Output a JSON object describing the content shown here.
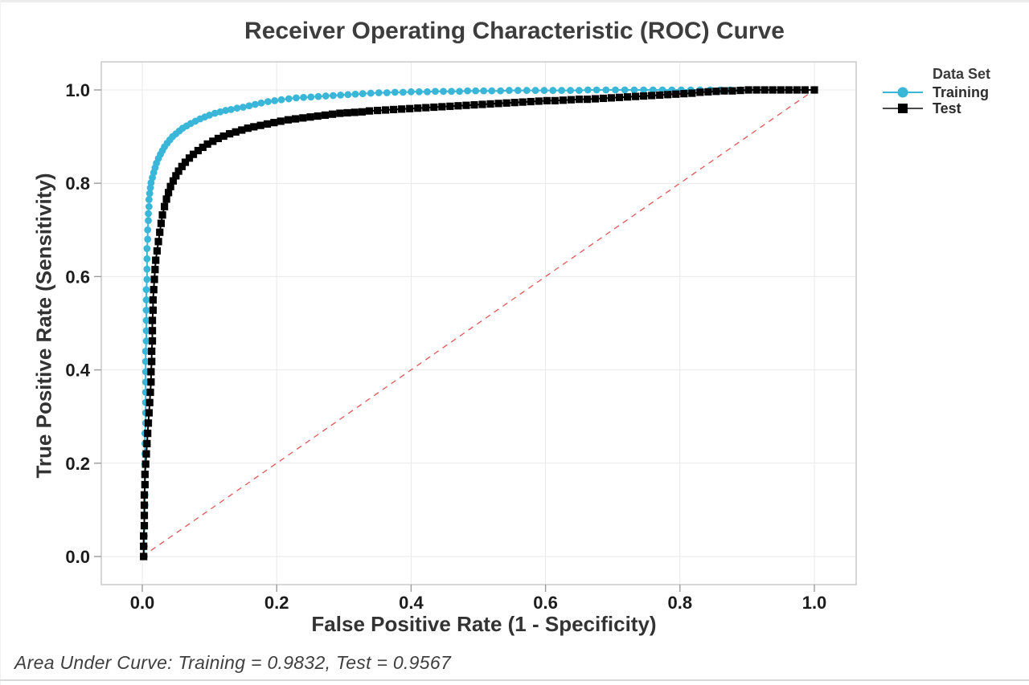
{
  "chart_data": {
    "type": "line",
    "title": "Receiver Operating Characteristic (ROC) Curve",
    "xlabel": "False Positive Rate (1 - Specificity)",
    "ylabel": "True Positive Rate (Sensitivity)",
    "xlim": [
      0.0,
      1.0
    ],
    "ylim": [
      0.0,
      1.0
    ],
    "x_ticks": [
      0.0,
      0.2,
      0.4,
      0.6,
      0.8,
      1.0
    ],
    "y_ticks": [
      0.0,
      0.2,
      0.4,
      0.6,
      0.8,
      1.0
    ],
    "grid": true,
    "legend": {
      "title": "Data Set",
      "position": "right",
      "entries": [
        "Training",
        "Test"
      ]
    },
    "annotation": "Area Under Curve: Training = 0.9832, Test = 0.9567",
    "auc": {
      "Training": 0.9832,
      "Test": 0.9567
    },
    "reference_line": {
      "from": [
        0,
        0
      ],
      "to": [
        1,
        1
      ],
      "style": "dashed",
      "color": "#e25757"
    },
    "series": [
      {
        "name": "Training",
        "marker": "circle",
        "color": "#3ab7d8",
        "points": [
          [
            0.003,
            0
          ],
          [
            0.003,
            0.022
          ],
          [
            0.003,
            0.044
          ],
          [
            0.003,
            0.066
          ],
          [
            0.003,
            0.088
          ],
          [
            0.004,
            0.11
          ],
          [
            0.004,
            0.132
          ],
          [
            0.004,
            0.154
          ],
          [
            0.004,
            0.176
          ],
          [
            0.004,
            0.198
          ],
          [
            0.004,
            0.22
          ],
          [
            0.004,
            0.242
          ],
          [
            0.004,
            0.264
          ],
          [
            0.005,
            0.286
          ],
          [
            0.005,
            0.308
          ],
          [
            0.005,
            0.33
          ],
          [
            0.005,
            0.352
          ],
          [
            0.005,
            0.374
          ],
          [
            0.005,
            0.396
          ],
          [
            0.005,
            0.418
          ],
          [
            0.005,
            0.44
          ],
          [
            0.006,
            0.462
          ],
          [
            0.006,
            0.484
          ],
          [
            0.006,
            0.506
          ],
          [
            0.006,
            0.528
          ],
          [
            0.006,
            0.55
          ],
          [
            0.006,
            0.572
          ],
          [
            0.007,
            0.594
          ],
          [
            0.007,
            0.616
          ],
          [
            0.007,
            0.638
          ],
          [
            0.007,
            0.66
          ],
          [
            0.008,
            0.68
          ],
          [
            0.008,
            0.7
          ],
          [
            0.009,
            0.72
          ],
          [
            0.009,
            0.735
          ],
          [
            0.01,
            0.75
          ],
          [
            0.01,
            0.765
          ],
          [
            0.011,
            0.778
          ],
          [
            0.012,
            0.79
          ],
          [
            0.013,
            0.801
          ],
          [
            0.015,
            0.812
          ],
          [
            0.017,
            0.823
          ],
          [
            0.019,
            0.833
          ],
          [
            0.021,
            0.843
          ],
          [
            0.024,
            0.853
          ],
          [
            0.027,
            0.862
          ],
          [
            0.03,
            0.87
          ],
          [
            0.033,
            0.878
          ],
          [
            0.037,
            0.886
          ],
          [
            0.041,
            0.893
          ],
          [
            0.045,
            0.9
          ],
          [
            0.05,
            0.906
          ],
          [
            0.055,
            0.912
          ],
          [
            0.06,
            0.918
          ],
          [
            0.066,
            0.923
          ],
          [
            0.072,
            0.928
          ],
          [
            0.079,
            0.933
          ],
          [
            0.086,
            0.938
          ],
          [
            0.093,
            0.942
          ],
          [
            0.1,
            0.946
          ],
          [
            0.108,
            0.95
          ],
          [
            0.116,
            0.953
          ],
          [
            0.124,
            0.956
          ],
          [
            0.132,
            0.958
          ],
          [
            0.141,
            0.961
          ],
          [
            0.15,
            0.963
          ],
          [
            0.159,
            0.966
          ],
          [
            0.168,
            0.969
          ],
          [
            0.177,
            0.972
          ],
          [
            0.187,
            0.975
          ],
          [
            0.197,
            0.977
          ],
          [
            0.207,
            0.979
          ],
          [
            0.218,
            0.981
          ],
          [
            0.229,
            0.983
          ],
          [
            0.24,
            0.984
          ],
          [
            0.251,
            0.985
          ],
          [
            0.262,
            0.986
          ],
          [
            0.273,
            0.987
          ],
          [
            0.284,
            0.988
          ],
          [
            0.295,
            0.989
          ],
          [
            0.306,
            0.99
          ],
          [
            0.317,
            0.991
          ],
          [
            0.328,
            0.992
          ],
          [
            0.34,
            0.993
          ],
          [
            0.352,
            0.994
          ],
          [
            0.364,
            0.994
          ],
          [
            0.376,
            0.995
          ],
          [
            0.388,
            0.995
          ],
          [
            0.4,
            0.996
          ],
          [
            0.412,
            0.996
          ],
          [
            0.424,
            0.996
          ],
          [
            0.436,
            0.997
          ],
          [
            0.448,
            0.997
          ],
          [
            0.46,
            0.997
          ],
          [
            0.472,
            0.997
          ],
          [
            0.484,
            0.998
          ],
          [
            0.496,
            0.998
          ],
          [
            0.508,
            0.998
          ],
          [
            0.52,
            0.998
          ],
          [
            0.533,
            0.998
          ],
          [
            0.546,
            0.999
          ],
          [
            0.559,
            0.999
          ],
          [
            0.572,
            0.999
          ],
          [
            0.585,
            0.999
          ],
          [
            0.598,
            0.999
          ],
          [
            0.611,
            0.999
          ],
          [
            0.624,
            0.999
          ],
          [
            0.637,
            0.999
          ],
          [
            0.65,
            0.999
          ],
          [
            0.663,
            1
          ],
          [
            0.676,
            1
          ],
          [
            0.69,
            1
          ],
          [
            0.704,
            1
          ],
          [
            0.718,
            1
          ],
          [
            0.732,
            1
          ],
          [
            0.746,
            1
          ],
          [
            0.76,
            1
          ],
          [
            0.774,
            1
          ],
          [
            0.788,
            1
          ],
          [
            0.802,
            1
          ],
          [
            0.816,
            1
          ],
          [
            0.83,
            1
          ],
          [
            0.845,
            1
          ],
          [
            0.86,
            1
          ],
          [
            0.875,
            1
          ],
          [
            0.89,
            1
          ],
          [
            1,
            1
          ]
        ]
      },
      {
        "name": "Test",
        "marker": "square",
        "color": "#000000",
        "points": [
          [
            0.002,
            0
          ],
          [
            0.002,
            0.022
          ],
          [
            0.002,
            0.044
          ],
          [
            0.003,
            0.066
          ],
          [
            0.003,
            0.088
          ],
          [
            0.003,
            0.11
          ],
          [
            0.003,
            0.132
          ],
          [
            0.004,
            0.154
          ],
          [
            0.004,
            0.176
          ],
          [
            0.005,
            0.198
          ],
          [
            0.006,
            0.22
          ],
          [
            0.007,
            0.242
          ],
          [
            0.008,
            0.264
          ],
          [
            0.009,
            0.286
          ],
          [
            0.01,
            0.308
          ],
          [
            0.011,
            0.33
          ],
          [
            0.012,
            0.352
          ],
          [
            0.013,
            0.374
          ],
          [
            0.013,
            0.396
          ],
          [
            0.014,
            0.418
          ],
          [
            0.014,
            0.44
          ],
          [
            0.015,
            0.462
          ],
          [
            0.015,
            0.484
          ],
          [
            0.015,
            0.506
          ],
          [
            0.016,
            0.528
          ],
          [
            0.016,
            0.55
          ],
          [
            0.017,
            0.572
          ],
          [
            0.018,
            0.594
          ],
          [
            0.019,
            0.615
          ],
          [
            0.02,
            0.635
          ],
          [
            0.022,
            0.655
          ],
          [
            0.024,
            0.675
          ],
          [
            0.026,
            0.695
          ],
          [
            0.028,
            0.714
          ],
          [
            0.03,
            0.732
          ],
          [
            0.033,
            0.75
          ],
          [
            0.036,
            0.766
          ],
          [
            0.039,
            0.78
          ],
          [
            0.042,
            0.793
          ],
          [
            0.046,
            0.805
          ],
          [
            0.05,
            0.816
          ],
          [
            0.054,
            0.826
          ],
          [
            0.059,
            0.836
          ],
          [
            0.064,
            0.845
          ],
          [
            0.07,
            0.854
          ],
          [
            0.076,
            0.862
          ],
          [
            0.083,
            0.87
          ],
          [
            0.09,
            0.877
          ],
          [
            0.097,
            0.884
          ],
          [
            0.105,
            0.89
          ],
          [
            0.113,
            0.896
          ],
          [
            0.121,
            0.901
          ],
          [
            0.13,
            0.906
          ],
          [
            0.139,
            0.91
          ],
          [
            0.148,
            0.914
          ],
          [
            0.157,
            0.918
          ],
          [
            0.166,
            0.921
          ],
          [
            0.176,
            0.924
          ],
          [
            0.186,
            0.927
          ],
          [
            0.196,
            0.93
          ],
          [
            0.206,
            0.933
          ],
          [
            0.217,
            0.936
          ],
          [
            0.228,
            0.938
          ],
          [
            0.239,
            0.94
          ],
          [
            0.25,
            0.942
          ],
          [
            0.261,
            0.944
          ],
          [
            0.272,
            0.946
          ],
          [
            0.283,
            0.948
          ],
          [
            0.294,
            0.95
          ],
          [
            0.305,
            0.951
          ],
          [
            0.316,
            0.952
          ],
          [
            0.327,
            0.953
          ],
          [
            0.338,
            0.955
          ],
          [
            0.35,
            0.956
          ],
          [
            0.362,
            0.957
          ],
          [
            0.374,
            0.958
          ],
          [
            0.386,
            0.959
          ],
          [
            0.398,
            0.96
          ],
          [
            0.41,
            0.961
          ],
          [
            0.422,
            0.962
          ],
          [
            0.434,
            0.963
          ],
          [
            0.446,
            0.964
          ],
          [
            0.458,
            0.965
          ],
          [
            0.47,
            0.966
          ],
          [
            0.482,
            0.967
          ],
          [
            0.494,
            0.968
          ],
          [
            0.506,
            0.969
          ],
          [
            0.518,
            0.97
          ],
          [
            0.53,
            0.971
          ],
          [
            0.542,
            0.972
          ],
          [
            0.554,
            0.973
          ],
          [
            0.566,
            0.974
          ],
          [
            0.578,
            0.975
          ],
          [
            0.59,
            0.976
          ],
          [
            0.602,
            0.977
          ],
          [
            0.614,
            0.977
          ],
          [
            0.626,
            0.978
          ],
          [
            0.638,
            0.979
          ],
          [
            0.65,
            0.98
          ],
          [
            0.662,
            0.98
          ],
          [
            0.674,
            0.981
          ],
          [
            0.686,
            0.982
          ],
          [
            0.698,
            0.983
          ],
          [
            0.71,
            0.984
          ],
          [
            0.722,
            0.985
          ],
          [
            0.734,
            0.986
          ],
          [
            0.746,
            0.987
          ],
          [
            0.758,
            0.988
          ],
          [
            0.77,
            0.989
          ],
          [
            0.782,
            0.99
          ],
          [
            0.794,
            0.991
          ],
          [
            0.806,
            0.992
          ],
          [
            0.818,
            0.993
          ],
          [
            0.83,
            0.995
          ],
          [
            0.842,
            0.996
          ],
          [
            0.854,
            0.997
          ],
          [
            0.866,
            0.998
          ],
          [
            0.878,
            0.998
          ],
          [
            0.89,
            0.999
          ],
          [
            0.902,
            1
          ],
          [
            0.914,
            1
          ],
          [
            0.926,
            1
          ],
          [
            0.938,
            1
          ],
          [
            0.95,
            1
          ],
          [
            0.962,
            1
          ],
          [
            0.974,
            1
          ],
          [
            0.986,
            1
          ],
          [
            1,
            1
          ]
        ]
      }
    ]
  }
}
